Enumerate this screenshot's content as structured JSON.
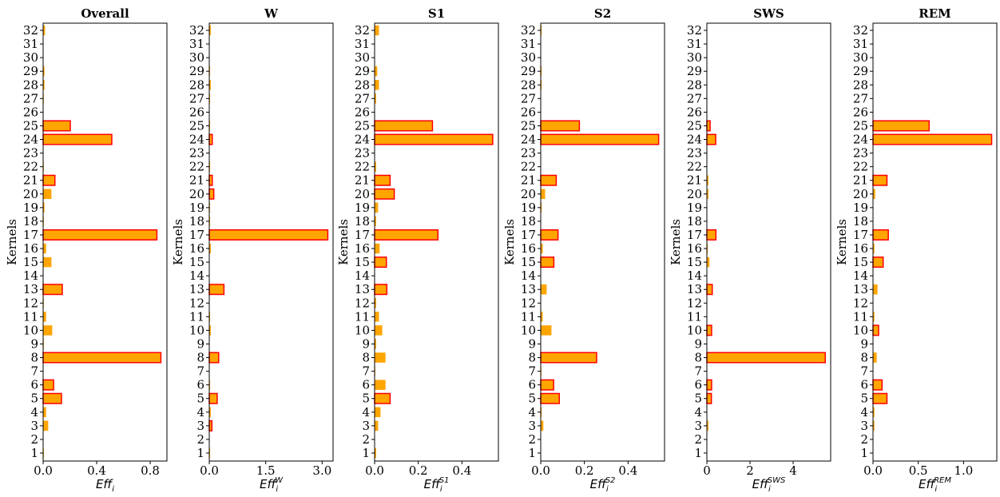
{
  "chart_data": [
    {
      "type": "bar",
      "orientation": "horizontal",
      "title": "Overall",
      "xlabel": "Eff",
      "xlabel_sub": "i",
      "xlabel_sup": "",
      "ylabel": "Kernels",
      "categories": [
        1,
        2,
        3,
        4,
        5,
        6,
        7,
        8,
        9,
        10,
        11,
        12,
        13,
        14,
        15,
        16,
        17,
        18,
        19,
        20,
        21,
        22,
        23,
        24,
        25,
        26,
        27,
        28,
        29,
        30,
        31,
        32
      ],
      "values": [
        0.005,
        0,
        0.038,
        0.022,
        0.137,
        0.078,
        0,
        0.88,
        0.005,
        0.068,
        0.022,
        0.005,
        0.143,
        0,
        0.062,
        0.022,
        0.85,
        0.005,
        0.01,
        0.062,
        0.088,
        0.005,
        0,
        0.513,
        0.203,
        0,
        0.005,
        0.01,
        0.01,
        0,
        0,
        0.014
      ],
      "highlighted": [
        5,
        6,
        8,
        13,
        17,
        21,
        24,
        25
      ],
      "xlim": [
        0,
        0.925
      ],
      "xticks": [
        "0.0",
        "0.4",
        "0.8"
      ],
      "xtick_values": [
        0,
        0.4,
        0.8
      ]
    },
    {
      "type": "bar",
      "orientation": "horizontal",
      "title": "W",
      "xlabel": "Eff",
      "xlabel_sub": "i",
      "xlabel_sup": "W",
      "ylabel": "Kernels",
      "categories": [
        1,
        2,
        3,
        4,
        5,
        6,
        7,
        8,
        9,
        10,
        11,
        12,
        13,
        14,
        15,
        16,
        17,
        18,
        19,
        20,
        21,
        22,
        23,
        24,
        25,
        26,
        27,
        28,
        29,
        30,
        31,
        32
      ],
      "values": [
        0.02,
        0,
        0.07,
        0.04,
        0.21,
        0.02,
        0,
        0.25,
        0,
        0.04,
        0.02,
        0,
        0.39,
        0,
        0,
        0.04,
        3.15,
        0.02,
        0.02,
        0.12,
        0.08,
        0.02,
        0,
        0.08,
        0.02,
        0,
        0.02,
        0.04,
        0.02,
        0,
        0,
        0.04
      ],
      "highlighted": [
        3,
        5,
        8,
        13,
        17,
        20,
        21,
        24
      ],
      "xlim": [
        0,
        3.29
      ],
      "xticks": [
        "0.0",
        "1.5",
        "3.0"
      ],
      "xtick_values": [
        0,
        1.5,
        3.0
      ]
    },
    {
      "type": "bar",
      "orientation": "horizontal",
      "title": "S1",
      "xlabel": "Eff",
      "xlabel_sub": "i",
      "xlabel_sup": "S1",
      "ylabel": "Kernels",
      "categories": [
        1,
        2,
        3,
        4,
        5,
        6,
        7,
        8,
        9,
        10,
        11,
        12,
        13,
        14,
        15,
        16,
        17,
        18,
        19,
        20,
        21,
        22,
        23,
        24,
        25,
        26,
        27,
        28,
        29,
        30,
        31,
        32
      ],
      "values": [
        0.007,
        0,
        0.016,
        0.027,
        0.071,
        0.05,
        0.003,
        0.05,
        0.007,
        0.035,
        0.02,
        0.007,
        0.056,
        0,
        0.054,
        0.023,
        0.29,
        0.007,
        0.016,
        0.09,
        0.071,
        0.007,
        0,
        0.541,
        0.265,
        0,
        0.007,
        0.02,
        0.012,
        0,
        0,
        0.02
      ],
      "highlighted": [
        5,
        13,
        15,
        17,
        20,
        21,
        24,
        25
      ],
      "xlim": [
        0,
        0.567
      ],
      "xticks": [
        "0.0",
        "0.2",
        "0.4"
      ],
      "xtick_values": [
        0,
        0.2,
        0.4
      ]
    },
    {
      "type": "bar",
      "orientation": "horizontal",
      "title": "S2",
      "xlabel": "Eff",
      "xlabel_sub": "i",
      "xlabel_sup": "S2",
      "ylabel": "Kernels",
      "categories": [
        1,
        2,
        3,
        4,
        5,
        6,
        7,
        8,
        9,
        10,
        11,
        12,
        13,
        14,
        15,
        16,
        17,
        18,
        19,
        20,
        21,
        22,
        23,
        24,
        25,
        26,
        27,
        28,
        29,
        30,
        31,
        32
      ],
      "values": [
        0,
        0,
        0.012,
        0.004,
        0.085,
        0.059,
        0.003,
        0.256,
        0,
        0.049,
        0.009,
        0,
        0.027,
        0,
        0.06,
        0.009,
        0.079,
        0,
        0.004,
        0.02,
        0.071,
        0,
        0,
        0.54,
        0.177,
        0,
        0,
        0.004,
        0.004,
        0,
        0,
        0.004
      ],
      "highlighted": [
        5,
        6,
        8,
        15,
        17,
        21,
        24,
        25
      ],
      "xlim": [
        0,
        0.567
      ],
      "xticks": [
        "0.0",
        "0.2",
        "0.4"
      ],
      "xtick_values": [
        0,
        0.2,
        0.4
      ]
    },
    {
      "type": "bar",
      "orientation": "horizontal",
      "title": "SWS",
      "xlabel": "Eff",
      "xlabel_sub": "i",
      "xlabel_sup": "SWS",
      "ylabel": "Kernels",
      "categories": [
        1,
        2,
        3,
        4,
        5,
        6,
        7,
        8,
        9,
        10,
        11,
        12,
        13,
        14,
        15,
        16,
        17,
        18,
        19,
        20,
        21,
        22,
        23,
        24,
        25,
        26,
        27,
        28,
        29,
        30,
        31,
        32
      ],
      "values": [
        0,
        0,
        0.07,
        0,
        0.21,
        0.22,
        0,
        5.49,
        0,
        0.22,
        0,
        0,
        0.25,
        0,
        0.12,
        0.04,
        0.42,
        0,
        0,
        0.07,
        0.07,
        0,
        0,
        0.41,
        0.15,
        0,
        0,
        0,
        0,
        0,
        0,
        0
      ],
      "highlighted": [
        5,
        6,
        8,
        10,
        13,
        17,
        24,
        25
      ],
      "xlim": [
        0,
        5.74
      ],
      "xticks": [
        "0",
        "2",
        "4"
      ],
      "xtick_values": [
        0,
        2,
        4
      ]
    },
    {
      "type": "bar",
      "orientation": "horizontal",
      "title": "REM",
      "xlabel": "Eff",
      "xlabel_sub": "i",
      "xlabel_sup": "REM",
      "ylabel": "Kernels",
      "categories": [
        1,
        2,
        3,
        4,
        5,
        6,
        7,
        8,
        9,
        10,
        11,
        12,
        13,
        14,
        15,
        16,
        17,
        18,
        19,
        20,
        21,
        22,
        23,
        24,
        25,
        26,
        27,
        28,
        29,
        30,
        31,
        32
      ],
      "values": [
        0.003,
        0.003,
        0.015,
        0.015,
        0.154,
        0.1,
        0.003,
        0.041,
        0.003,
        0.062,
        0.015,
        0.003,
        0.05,
        0.003,
        0.112,
        0.015,
        0.169,
        0.003,
        0.003,
        0.024,
        0.154,
        0.003,
        0.003,
        1.31,
        0.62,
        0.003,
        0.003,
        0.003,
        0.003,
        0.003,
        0.003,
        0.003
      ],
      "highlighted": [
        5,
        6,
        10,
        15,
        17,
        21,
        24,
        25
      ],
      "xlim": [
        0,
        1.367
      ],
      "xticks": [
        "0.0",
        "0.5",
        "1.0"
      ],
      "xtick_values": [
        0,
        0.5,
        1.0
      ]
    }
  ],
  "colors": {
    "bar_fill": "#FFA500",
    "highlight_edge": "#FF0000",
    "axes": "#000000"
  }
}
